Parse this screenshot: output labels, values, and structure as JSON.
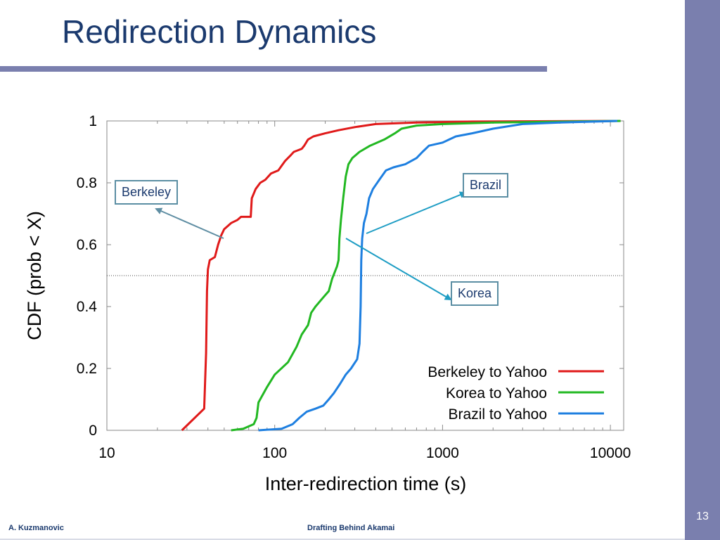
{
  "slide": {
    "title": "Redirection Dynamics",
    "slide_number": "13",
    "footer_left": "A. Kuzmanovic",
    "footer_center": "Drafting Behind Akamai",
    "colors": {
      "title": "#1b3a6e",
      "sidebar": "#7a7fae",
      "rule": "#7a7fae",
      "annotation_border": "#5b8ea3",
      "arrow_gray": "#5f8ea3",
      "arrow_blue": "#1e9dc4"
    }
  },
  "annotations": {
    "berkeley": "Berkeley",
    "brazil": "Brazil",
    "korea": "Korea"
  },
  "chart_data": {
    "type": "line",
    "title": "",
    "xlabel": "Inter-redirection time (s)",
    "ylabel": "CDF (prob < X)",
    "x_scale": "log",
    "xlim": [
      10,
      12000
    ],
    "ylim": [
      0,
      1
    ],
    "x_ticks": [
      10,
      100,
      1000,
      10000
    ],
    "x_tick_labels": [
      "10",
      "100",
      "1000",
      "10000"
    ],
    "y_ticks": [
      0,
      0.2,
      0.4,
      0.6,
      0.8,
      1
    ],
    "y_tick_labels": [
      "0",
      "0.2",
      "0.4",
      "0.6",
      "0.8",
      "1"
    ],
    "reference_line_y": 0.5,
    "grid": false,
    "legend_position": "bottom-right",
    "series": [
      {
        "name": "Berkeley to Yahoo",
        "color": "#e01a1a",
        "points": [
          [
            28,
            0
          ],
          [
            38,
            0.07
          ],
          [
            39,
            0.25
          ],
          [
            39.5,
            0.45
          ],
          [
            40,
            0.52
          ],
          [
            41,
            0.55
          ],
          [
            44,
            0.56
          ],
          [
            46,
            0.6
          ],
          [
            48,
            0.63
          ],
          [
            50,
            0.65
          ],
          [
            55,
            0.67
          ],
          [
            60,
            0.68
          ],
          [
            63,
            0.69
          ],
          [
            72,
            0.69
          ],
          [
            73,
            0.75
          ],
          [
            77,
            0.78
          ],
          [
            82,
            0.8
          ],
          [
            88,
            0.81
          ],
          [
            95,
            0.83
          ],
          [
            105,
            0.84
          ],
          [
            115,
            0.87
          ],
          [
            125,
            0.89
          ],
          [
            130,
            0.9
          ],
          [
            145,
            0.91
          ],
          [
            150,
            0.92
          ],
          [
            158,
            0.94
          ],
          [
            170,
            0.95
          ],
          [
            200,
            0.96
          ],
          [
            240,
            0.97
          ],
          [
            300,
            0.98
          ],
          [
            400,
            0.99
          ],
          [
            700,
            0.995
          ],
          [
            1500,
            0.998
          ],
          [
            11500,
            1
          ]
        ]
      },
      {
        "name": "Korea to Yahoo",
        "color": "#22b822",
        "points": [
          [
            55,
            0
          ],
          [
            65,
            0.005
          ],
          [
            75,
            0.02
          ],
          [
            78,
            0.04
          ],
          [
            80,
            0.09
          ],
          [
            90,
            0.14
          ],
          [
            100,
            0.18
          ],
          [
            120,
            0.22
          ],
          [
            135,
            0.27
          ],
          [
            145,
            0.31
          ],
          [
            158,
            0.34
          ],
          [
            165,
            0.38
          ],
          [
            175,
            0.4
          ],
          [
            195,
            0.43
          ],
          [
            210,
            0.45
          ],
          [
            220,
            0.49
          ],
          [
            235,
            0.53
          ],
          [
            240,
            0.55
          ],
          [
            243,
            0.62
          ],
          [
            248,
            0.68
          ],
          [
            256,
            0.75
          ],
          [
            265,
            0.82
          ],
          [
            275,
            0.86
          ],
          [
            290,
            0.88
          ],
          [
            320,
            0.9
          ],
          [
            370,
            0.92
          ],
          [
            450,
            0.94
          ],
          [
            520,
            0.96
          ],
          [
            570,
            0.975
          ],
          [
            700,
            0.985
          ],
          [
            1000,
            0.99
          ],
          [
            2000,
            0.995
          ],
          [
            11500,
            1
          ]
        ]
      },
      {
        "name": "Brazil to Yahoo",
        "color": "#1e7fe0",
        "points": [
          [
            80,
            0
          ],
          [
            110,
            0.005
          ],
          [
            128,
            0.02
          ],
          [
            140,
            0.04
          ],
          [
            155,
            0.06
          ],
          [
            175,
            0.07
          ],
          [
            195,
            0.08
          ],
          [
            210,
            0.1
          ],
          [
            225,
            0.12
          ],
          [
            245,
            0.15
          ],
          [
            265,
            0.18
          ],
          [
            285,
            0.2
          ],
          [
            310,
            0.23
          ],
          [
            320,
            0.28
          ],
          [
            325,
            0.4
          ],
          [
            328,
            0.55
          ],
          [
            332,
            0.62
          ],
          [
            340,
            0.67
          ],
          [
            352,
            0.7
          ],
          [
            365,
            0.75
          ],
          [
            385,
            0.78
          ],
          [
            420,
            0.81
          ],
          [
            460,
            0.84
          ],
          [
            510,
            0.85
          ],
          [
            600,
            0.86
          ],
          [
            700,
            0.88
          ],
          [
            760,
            0.9
          ],
          [
            830,
            0.92
          ],
          [
            1000,
            0.93
          ],
          [
            1200,
            0.95
          ],
          [
            1500,
            0.96
          ],
          [
            2000,
            0.975
          ],
          [
            3000,
            0.99
          ],
          [
            5000,
            0.995
          ],
          [
            11000,
            1
          ]
        ]
      }
    ]
  }
}
